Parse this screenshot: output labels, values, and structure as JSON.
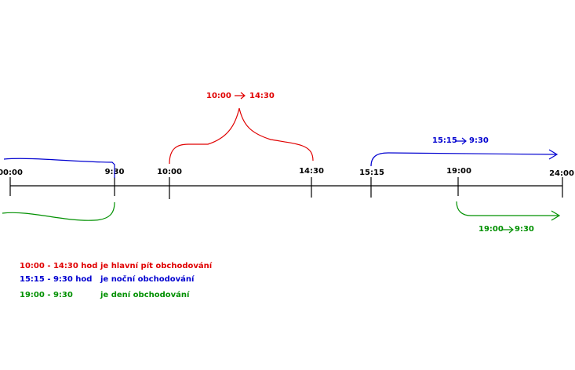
{
  "timeline": {
    "ticks": [
      "00:00",
      "9:30",
      "10:00",
      "14:30",
      "15:15",
      "19:00",
      "24:00"
    ]
  },
  "annotations": [
    {
      "from": "10:00",
      "to": "14:30"
    },
    {
      "from": "15:15",
      "to": "9:30"
    },
    {
      "from": "19:00",
      "to": "9:30"
    }
  ],
  "legend": [
    {
      "range": "10:00 - 14:30 hod",
      "text": "je hlavní pít obchodování"
    },
    {
      "range": "15:15 - 9:30 hod",
      "text": "je noční obchodování"
    },
    {
      "range": "19:00 - 9:30",
      "text": "je dení obchodování"
    }
  ]
}
